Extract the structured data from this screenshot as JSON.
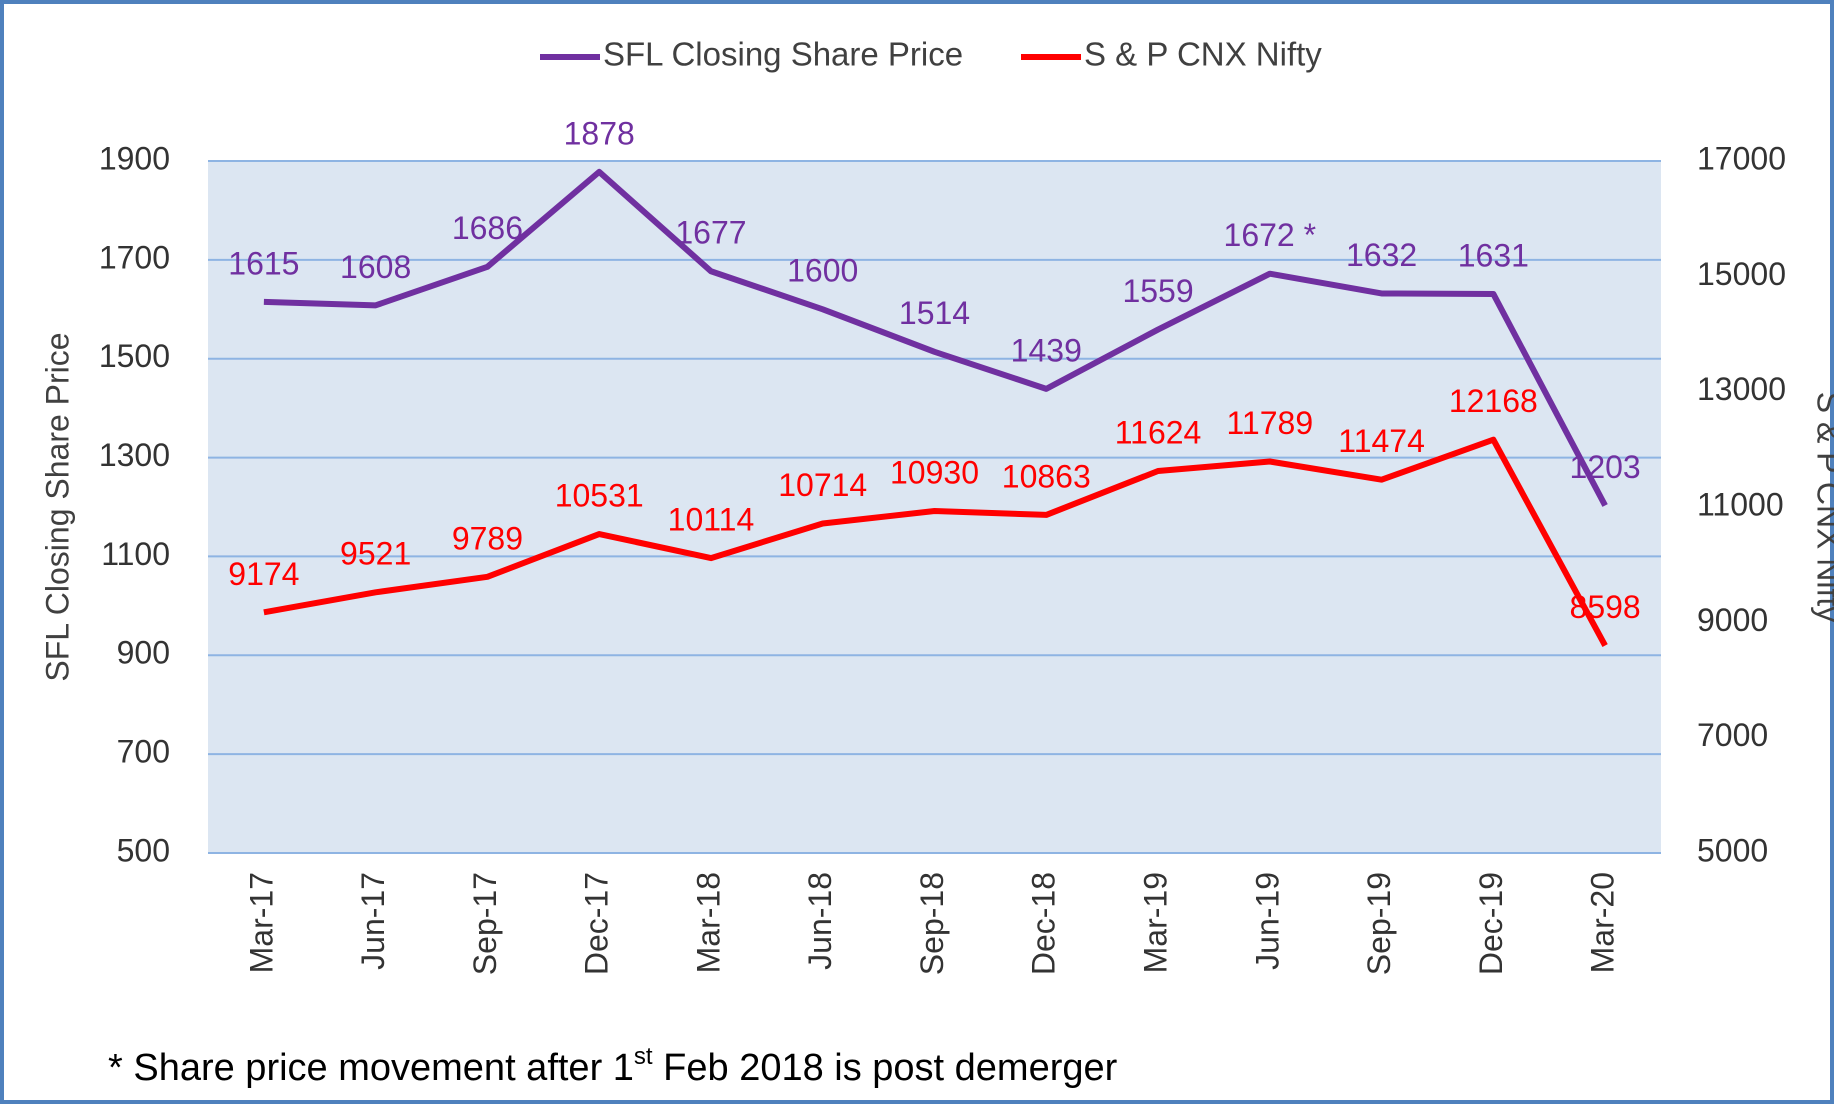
{
  "chart_data": {
    "type": "line",
    "categories": [
      "Mar-17",
      "Jun-17",
      "Sep-17",
      "Dec-17",
      "Mar-18",
      "Jun-18",
      "Sep-18",
      "Dec-18",
      "Mar-19",
      "Jun-19",
      "Sep-19",
      "Dec-19",
      "Mar-20"
    ],
    "series": [
      {
        "name": "SFL Closing Share Price",
        "color": "#7030a0",
        "axis": "y",
        "values": [
          1615,
          1608,
          1686,
          1878,
          1677,
          1600,
          1514,
          1439,
          1559,
          1672,
          1632,
          1631,
          1203
        ],
        "value_labels": [
          "1615",
          "1608",
          "1686",
          "1878",
          "1677",
          "1600",
          "1514",
          "1439",
          "1559",
          "1672 *",
          "1632",
          "1631",
          "1203"
        ]
      },
      {
        "name": "S & P CNX Nifty",
        "color": "#ff0000",
        "axis": "y2",
        "values": [
          9174,
          9521,
          9789,
          10531,
          10114,
          10714,
          10930,
          10863,
          11624,
          11789,
          11474,
          12168,
          8598
        ]
      }
    ],
    "ylabel": "SFL Closing Share Price",
    "y2label": "S & P CNX Nifty",
    "ylim": [
      500,
      1900
    ],
    "yticks": [
      500,
      700,
      900,
      1100,
      1300,
      1500,
      1700,
      1900
    ],
    "y2lim": [
      5000,
      17000
    ],
    "y2ticks": [
      5000,
      7000,
      9000,
      11000,
      13000,
      15000,
      17000
    ],
    "grid": true,
    "legend": "top",
    "footnote": {
      "before": "* Share price movement after 1",
      "sup": "st",
      "after": " Feb 2018 is post demerger"
    }
  }
}
